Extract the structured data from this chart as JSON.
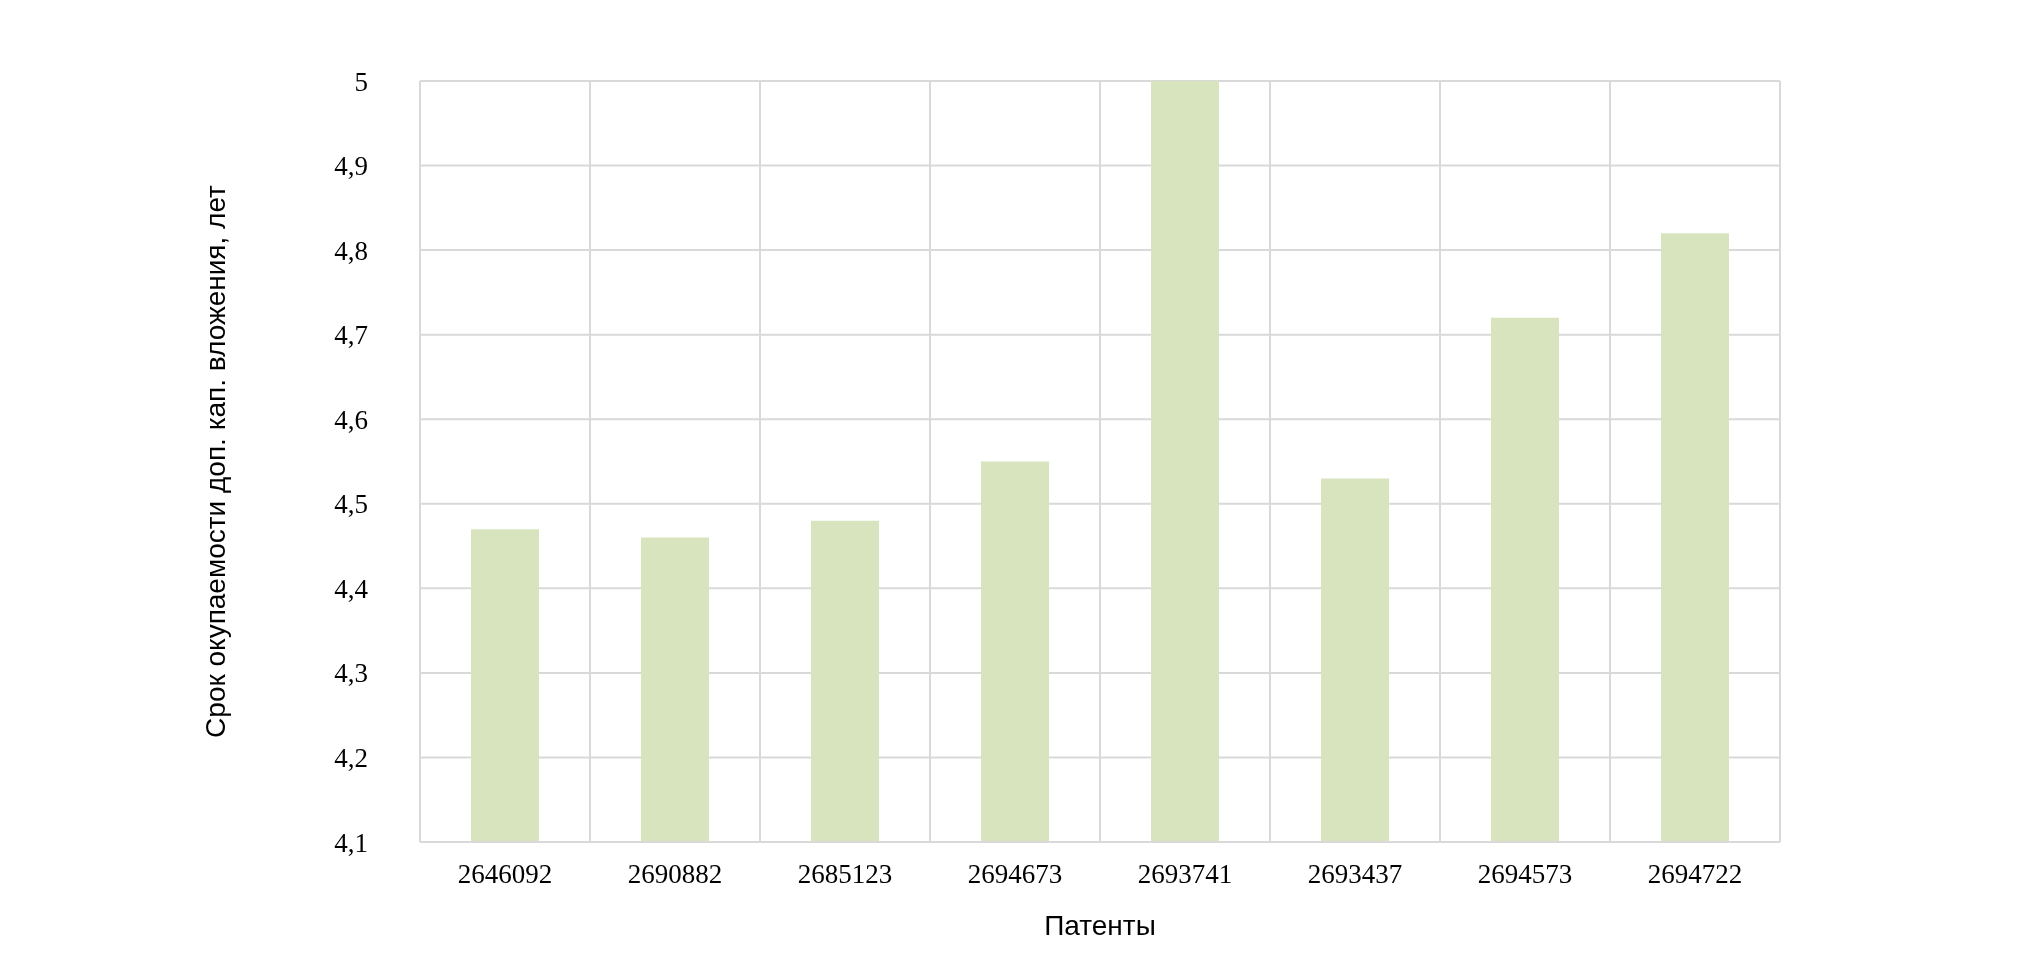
{
  "chart_data": {
    "type": "bar",
    "xlabel": "Патенты",
    "ylabel": "Срок окупаемости доп. кап. вложения, лет",
    "categories": [
      "2646092",
      "2690882",
      "2685123",
      "2694673",
      "2693741",
      "2693437",
      "2694573",
      "2694722"
    ],
    "values": [
      4.47,
      4.46,
      4.48,
      4.55,
      5.0,
      4.53,
      4.72,
      4.82
    ],
    "color": "#d7e4bd",
    "ylim": [
      4.1,
      5
    ],
    "yticks": [
      {
        "value": 4.1,
        "label": "4,1"
      },
      {
        "value": 4.2,
        "label": "4,2"
      },
      {
        "value": 4.3,
        "label": "4,3"
      },
      {
        "value": 4.4,
        "label": "4,4"
      },
      {
        "value": 4.5,
        "label": "4,5"
      },
      {
        "value": 4.6,
        "label": "4,6"
      },
      {
        "value": 4.7,
        "label": "4,7"
      },
      {
        "value": 4.8,
        "label": "4,8"
      },
      {
        "value": 4.9,
        "label": "4,9"
      },
      5
    ],
    "grid": true
  }
}
